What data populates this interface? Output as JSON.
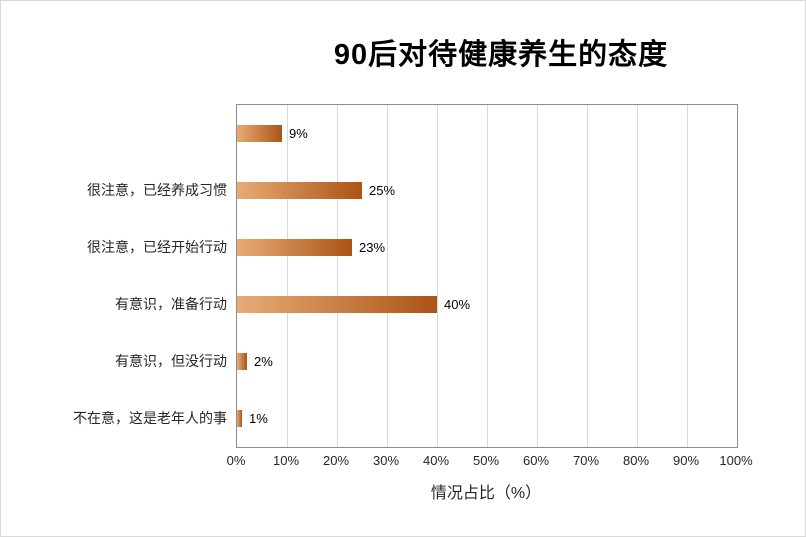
{
  "chart_data": {
    "type": "bar",
    "orientation": "horizontal",
    "title": "90后对待健康养生的态度",
    "xlabel": "情况占比（%）",
    "categories": [
      "",
      "很注意，已经养成习惯",
      "很注意，已经开始行动",
      "有意识，准备行动",
      "有意识，但没行动",
      "不在意，这是老年人的事"
    ],
    "values": [
      9,
      25,
      23,
      40,
      2,
      1
    ],
    "value_labels": [
      "9%",
      "25%",
      "23%",
      "40%",
      "2%",
      "1%"
    ],
    "x_ticks": [
      "0%",
      "10%",
      "20%",
      "30%",
      "40%",
      "50%",
      "60%",
      "70%",
      "80%",
      "90%",
      "100%"
    ],
    "xlim": [
      0,
      100
    ],
    "grid": "vertical",
    "gridline_color": "#d9d9d9",
    "bar_color_start": "#e8ab76",
    "bar_color_end": "#ab5416",
    "legend": "none"
  }
}
